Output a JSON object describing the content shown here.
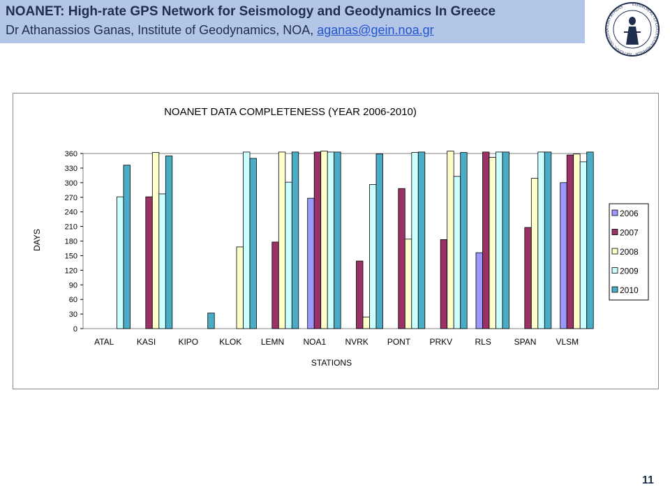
{
  "header": {
    "title": "NOANET: High-rate GPS Network for Seismology and Geodynamics In Greece",
    "subtitle_prefix": "Dr Athanassios Ganas, Institute of Geodynamics, NOA, ",
    "email": "aganas@gein.noa.gr"
  },
  "logo": {
    "text": "ΕΘΝΙΚΟΝ ΑΣΤΕΡΟΣΚΟΠΕΙΟΝ ΑΘΗΝΩΝ · NATIONAL OBSERVATORY ATHENS"
  },
  "page_number": "11",
  "colors": {
    "header_bg": "#b3c6e7",
    "s2006": "#9999ff",
    "s2007": "#993366",
    "s2008": "#ffffcc",
    "s2009": "#ccffff",
    "s2010": "#4bacc6"
  },
  "chart_data": {
    "type": "bar",
    "title": "NOANET DATA COMPLETENESS (YEAR 2006-2010)",
    "xlabel": "STATIONS",
    "ylabel": "DAYS",
    "ylim": [
      0,
      360
    ],
    "yticks": [
      0,
      30,
      60,
      90,
      120,
      150,
      180,
      210,
      240,
      270,
      300,
      330,
      360
    ],
    "legend_position": "right",
    "categories": [
      "ATAL",
      "KASI",
      "KIPO",
      "KLOK",
      "LEMN",
      "NOA1",
      "NVRK",
      "PONT",
      "PRKV",
      "RLS",
      "SPAN",
      "VLSM"
    ],
    "series": [
      {
        "name": "2006",
        "values": [
          0,
          0,
          0,
          0,
          0,
          268,
          0,
          0,
          0,
          156,
          0,
          300
        ]
      },
      {
        "name": "2007",
        "values": [
          0,
          271,
          0,
          0,
          178,
          363,
          139,
          288,
          183,
          363,
          208,
          357
        ]
      },
      {
        "name": "2008",
        "values": [
          0,
          362,
          0,
          168,
          363,
          365,
          24,
          184,
          365,
          352,
          309,
          359
        ]
      },
      {
        "name": "2009",
        "values": [
          271,
          277,
          0,
          363,
          301,
          363,
          296,
          362,
          313,
          363,
          363,
          343
        ]
      },
      {
        "name": "2010",
        "values": [
          336,
          355,
          32,
          350,
          363,
          363,
          359,
          363,
          362,
          363,
          363,
          363
        ]
      }
    ]
  }
}
